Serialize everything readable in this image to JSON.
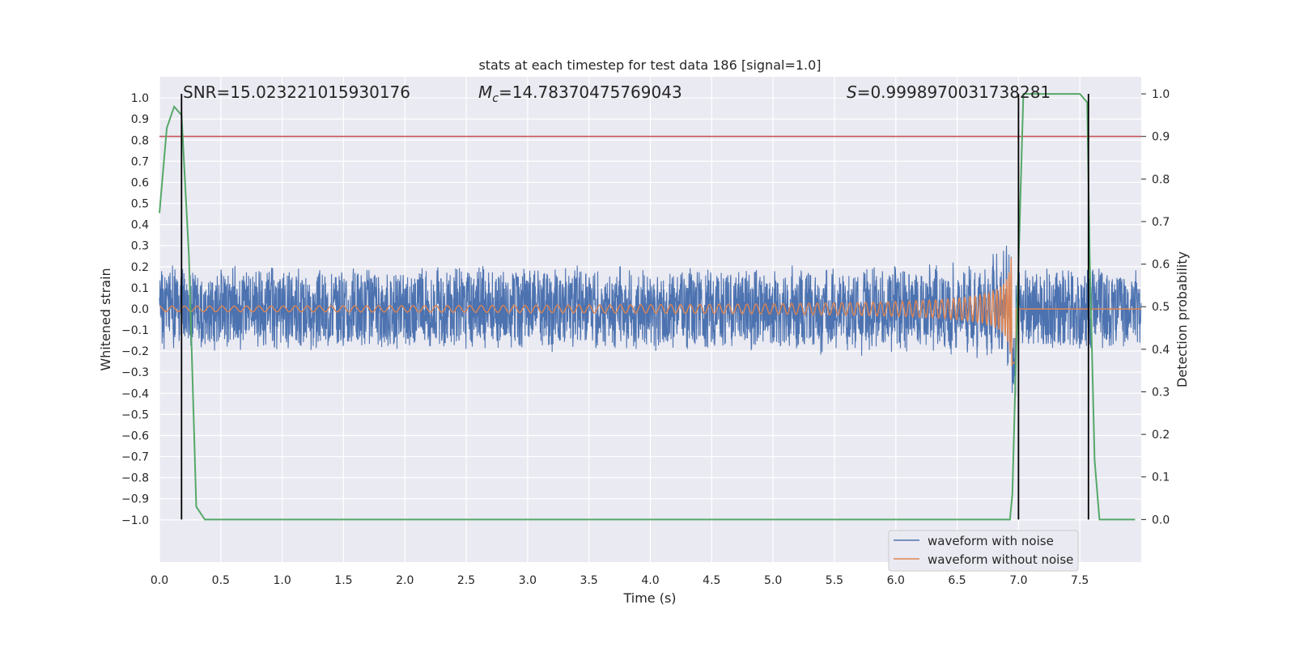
{
  "chart_data": {
    "type": "line",
    "title": "stats at each timestep for test data 186 [signal=1.0]",
    "xlabel": "Time (s)",
    "ylabel_left": "Whitened strain",
    "ylabel_right": "Detection probability",
    "xlim": [
      0.0,
      8.0
    ],
    "ylim_left": [
      -1.2,
      1.1
    ],
    "ylim_right": [
      -0.1,
      1.04
    ],
    "x_ticks": [
      "0.0",
      "0.5",
      "1.0",
      "1.5",
      "2.0",
      "2.5",
      "3.0",
      "3.5",
      "4.0",
      "4.5",
      "5.0",
      "5.5",
      "6.0",
      "6.5",
      "7.0",
      "7.5"
    ],
    "y_left_ticks": [
      "1.0",
      "0.9",
      "0.8",
      "0.7",
      "0.6",
      "0.5",
      "0.4",
      "0.3",
      "0.2",
      "0.1",
      "0.0",
      "−0.1",
      "−0.2",
      "−0.3",
      "−0.4",
      "−0.5",
      "−0.6",
      "−0.7",
      "−0.8",
      "−0.9",
      "−1.0"
    ],
    "y_right_ticks": [
      "1.0",
      "0.9",
      "0.8",
      "0.7",
      "0.6",
      "0.5",
      "0.4",
      "0.3",
      "0.2",
      "0.1",
      "0.0"
    ],
    "annotations": {
      "snr": "SNR=15.023221015930176",
      "mc": "=14.78370475769043",
      "mc_symbol": "M",
      "mc_sub": "c",
      "s_symbol": "S",
      "s": "=0.9998970031738281"
    },
    "threshold_probability": 0.9,
    "vertical_lines_s": [
      0.18,
      7.0,
      7.57
    ],
    "signal_peak_s": 6.96,
    "noise_amplitude": 0.2,
    "series": [
      {
        "name": "waveform with noise",
        "color": "#4c72b0",
        "axis": "left"
      },
      {
        "name": "waveform without noise",
        "color": "#dd8452",
        "axis": "left"
      },
      {
        "color": "#55a868",
        "axis": "right",
        "x": [
          0.0,
          0.06,
          0.12,
          0.18,
          0.24,
          0.3,
          0.37,
          0.5,
          1.0,
          2.0,
          3.0,
          4.0,
          5.0,
          6.0,
          6.93,
          6.95,
          7.0,
          7.04,
          7.1,
          7.3,
          7.5,
          7.56,
          7.58,
          7.62,
          7.66,
          7.75,
          7.95
        ],
        "y": [
          0.72,
          0.92,
          0.97,
          0.95,
          0.62,
          0.03,
          0.0,
          0.0,
          0.0,
          0.0,
          0.0,
          0.0,
          0.0,
          0.0,
          0.0,
          0.06,
          0.6,
          1.0,
          1.0,
          1.0,
          1.0,
          0.98,
          0.62,
          0.14,
          0.0,
          0.0,
          0.0
        ]
      }
    ],
    "threshold_color": "#c44e52",
    "grid": true,
    "legend_position": "bottom-right"
  }
}
